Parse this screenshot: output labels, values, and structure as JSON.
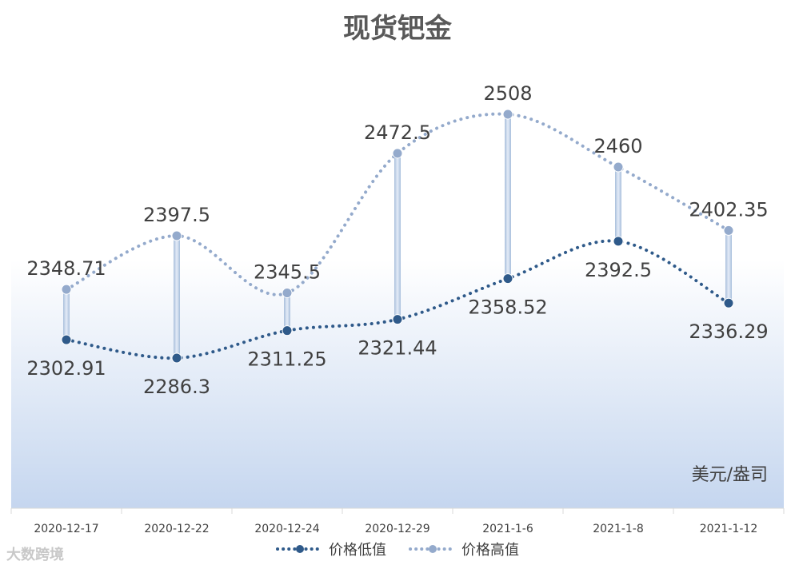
{
  "chart_data": {
    "type": "line",
    "title": "现货钯金",
    "unit_label": "美元/盎司",
    "categories": [
      "2020-12-17",
      "2020-12-22",
      "2020-12-24",
      "2020-12-29",
      "2021-1-6",
      "2021-1-8",
      "2021-1-12"
    ],
    "series": [
      {
        "name": "价格低值",
        "values": [
          2302.91,
          2286.3,
          2311.25,
          2321.44,
          2358.52,
          2392.5,
          2336.29
        ],
        "labels": [
          "2302.91",
          "2286.3",
          "2311.25",
          "2321.44",
          "2358.52",
          "2392.5",
          "2336.29"
        ],
        "color": "#2f5a8a"
      },
      {
        "name": "价格高值",
        "values": [
          2348.71,
          2397.5,
          2345.5,
          2472.5,
          2508,
          2460,
          2402.35
        ],
        "labels": [
          "2348.71",
          "2397.5",
          "2345.5",
          "2472.5",
          "2508",
          "2460",
          "2402.35"
        ],
        "color": "#94aacc"
      }
    ],
    "high_low_lines": true,
    "line_style": "dotted-smooth",
    "legend_position": "bottom",
    "grid": false
  },
  "watermark": "大数跨境"
}
